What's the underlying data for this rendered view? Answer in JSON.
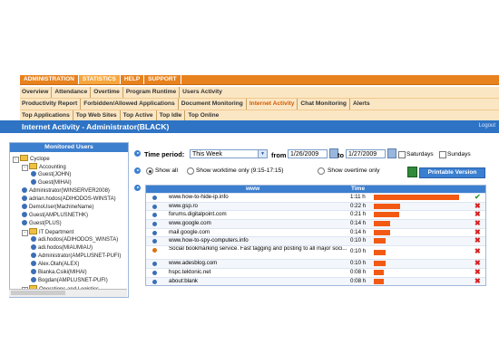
{
  "nav": {
    "tabs": [
      "ADMINISTRATION",
      "STATISTICS",
      "HELP",
      "SUPPORT"
    ],
    "active_tab": 1
  },
  "subnav": {
    "row1": [
      "Overview",
      "Attendance",
      "Overtime",
      "Program Runtime",
      "Users Activity"
    ],
    "row2": [
      "Productivity Report",
      "Forbidden/Allowed Applications",
      "Document Monitoring",
      "Internet Activity",
      "Chat Monitoring",
      "Alerts"
    ],
    "row3": [
      "Top Applications",
      "Top Web Sites",
      "Top Active",
      "Top Idle",
      "Top Online"
    ],
    "active_row2": 3
  },
  "page": {
    "title": "Internet Activity - Administrator(BLACK)",
    "logout": "Logout"
  },
  "monitored": {
    "header": "Monitored Users",
    "tree": [
      {
        "label": "Cyclope",
        "type": "folder",
        "level": 0,
        "exp": "-"
      },
      {
        "label": "Accounting",
        "type": "folder",
        "level": 1,
        "exp": "-"
      },
      {
        "label": "Guest(JOHN)",
        "type": "user",
        "level": 2
      },
      {
        "label": "Guest(MIHAI)",
        "type": "user",
        "level": 2
      },
      {
        "label": "Administrator(WINSERVER2008)",
        "type": "user",
        "level": 1
      },
      {
        "label": "adrian.hodos(ADIHODOS-WINSTA)",
        "type": "user",
        "level": 1
      },
      {
        "label": "DemoUser(MachineName)",
        "type": "user",
        "level": 1
      },
      {
        "label": "Guest(AMPLUSNETHK)",
        "type": "user",
        "level": 1
      },
      {
        "label": "Guest(PLUS)",
        "type": "user",
        "level": 1
      },
      {
        "label": "IT Department",
        "type": "folder",
        "level": 1,
        "exp": "-"
      },
      {
        "label": "adi.hodos(ADIHODOS_WINSTA)",
        "type": "user",
        "level": 2
      },
      {
        "label": "adi.hodos(MIAUMIAU)",
        "type": "user",
        "level": 2
      },
      {
        "label": "Administrator(AMPLUSNET-PUFI)",
        "type": "user",
        "level": 2
      },
      {
        "label": "Alex.Olah(ALEX)",
        "type": "user",
        "level": 2
      },
      {
        "label": "Bianka.Csiki(MIHAI)",
        "type": "user",
        "level": 2
      },
      {
        "label": "Bogdan(AMPLUSNET-PUFI)",
        "type": "user",
        "level": 2
      },
      {
        "label": "Operations and Logistics",
        "type": "folder",
        "level": 1,
        "exp": "+"
      }
    ]
  },
  "filters": {
    "time_period_label": "Time period:",
    "time_period_value": "This Week",
    "from_label": "from",
    "from_date": "1/26/2009",
    "to_label": "to",
    "to_date": "1/27/2009",
    "saturdays": "Saturdays",
    "sundays": "Sundays",
    "show_all": "Show all",
    "show_worktime": "Show worktime only (9:15-17:15)",
    "show_overtime": "Show overtime only",
    "printable": "Printable Version"
  },
  "table": {
    "col_www": "www",
    "col_time": "Time",
    "rows": [
      {
        "url": "www.how-to-hide-ip.info",
        "time": "1:11 h",
        "fill": 0.87,
        "ok": true,
        "icon": "web"
      },
      {
        "url": "www.gsp.ro",
        "time": "0:22 h",
        "fill": 0.27,
        "ok": false,
        "icon": "web"
      },
      {
        "url": "forums.digitalpoint.com",
        "time": "0:21 h",
        "fill": 0.26,
        "ok": false,
        "icon": "web"
      },
      {
        "url": "www.google.com",
        "time": "0:14 h",
        "fill": 0.17,
        "ok": false,
        "icon": "web"
      },
      {
        "url": "mail.google.com",
        "time": "0:14 h",
        "fill": 0.17,
        "ok": false,
        "icon": "web"
      },
      {
        "url": "www.how-to-spy-computers.info",
        "time": "0:10 h",
        "fill": 0.12,
        "ok": false,
        "icon": "web"
      },
      {
        "url": "Social bookmarking service. Fast tagging and posting to all major soci...",
        "time": "0:10 h",
        "fill": 0.12,
        "ok": false,
        "icon": "rss"
      },
      {
        "url": "www.adesblog.com",
        "time": "0:10 h",
        "fill": 0.12,
        "ok": false,
        "icon": "web"
      },
      {
        "url": "hspc.tektonic.net",
        "time": "0:08 h",
        "fill": 0.1,
        "ok": false,
        "icon": "web"
      },
      {
        "url": "about:blank",
        "time": "0:08 h",
        "fill": 0.1,
        "ok": false,
        "icon": "web"
      }
    ]
  }
}
